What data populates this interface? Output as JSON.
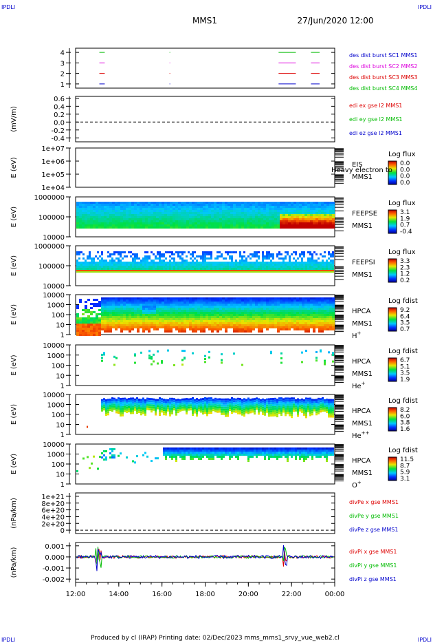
{
  "header": {
    "corner_left": "IPDLI",
    "corner_right": "IPDLI",
    "mission": "MMS1",
    "datetime": "27/Jun/2020 12:00"
  },
  "footer": {
    "text": "Produced by cl (IRAP)    Printing date: 02/Dec/2023    mms_mms1_srvy_vue_web2.cl",
    "corner_left": "IPDLI",
    "corner_right": "IPDLI"
  },
  "colors": {
    "red": "#dd0000",
    "magenta": "#dd00dd",
    "green": "#00bb00",
    "blue": "#0000cc"
  },
  "chart_data": [
    {
      "id": "burst",
      "type": "line",
      "y_ticks": [
        "1",
        "2",
        "3",
        "4"
      ],
      "ylim": [
        0.6,
        4.4
      ],
      "legend": [
        {
          "label": "des dist burst SC1 MMS1",
          "color": "blue"
        },
        {
          "label": "des dist burst SC2 MMS2",
          "color": "magenta"
        },
        {
          "label": "des dist burst SC3 MMS3",
          "color": "red"
        },
        {
          "label": "des dist burst SC4 MMS4",
          "color": "green"
        }
      ],
      "intervals_hours": [
        [
          13.1,
          13.35
        ],
        [
          16.35,
          16.38
        ],
        [
          21.4,
          22.2
        ],
        [
          22.9,
          23.3
        ]
      ]
    },
    {
      "id": "edi",
      "type": "line",
      "ylabel": "(mV/m)",
      "y_ticks": [
        "0.6",
        "0.4",
        "0.2",
        "0.0",
        "-0.2",
        "-0.4"
      ],
      "ylim": [
        -0.5,
        0.65
      ],
      "legend": [
        {
          "label": "edi ex gse l2 MMS1",
          "color": "red"
        },
        {
          "label": "edi ey gse l2 MMS1",
          "color": "green"
        },
        {
          "label": "edi ez gse l2 MMS1",
          "color": "blue"
        }
      ],
      "dashed_zero": true
    },
    {
      "id": "eis",
      "type": "heatmap",
      "ylabel": "E (eV)",
      "y_ticks": [
        "1e+07",
        "1e+06",
        "1e+05",
        "1e+04"
      ],
      "log": true,
      "label_lines": [
        "EIS",
        "MMS1"
      ],
      "overlay": "Heavy electron to",
      "colorbar_title": "Log flux",
      "colorbar_ticks": [
        "0.0",
        "0.0",
        "0.0",
        "0.0"
      ]
    },
    {
      "id": "feepse",
      "type": "heatmap",
      "ylabel": "E (eV)",
      "y_ticks": [
        "1000000",
        "100000",
        "10000"
      ],
      "log": true,
      "label_lines": [
        "FEEPSE",
        "MMS1"
      ],
      "colorbar_title": "Log flux",
      "colorbar_ticks": [
        "3.1",
        "1.9",
        "0.7",
        "-0.4"
      ]
    },
    {
      "id": "feepsi",
      "type": "heatmap",
      "ylabel": "E (eV)",
      "y_ticks": [
        "1000000",
        "100000",
        "10000"
      ],
      "log": true,
      "label_lines": [
        "FEEPSI",
        "MMS1"
      ],
      "colorbar_title": "Log flux",
      "colorbar_ticks": [
        "3.3",
        "2.3",
        "1.2",
        "0.2"
      ]
    },
    {
      "id": "hpca_h",
      "type": "heatmap",
      "ylabel": "E (eV)",
      "y_ticks": [
        "10000",
        "1000",
        "100",
        "10",
        "1"
      ],
      "log": true,
      "label_lines": [
        "HPCA",
        "MMS1",
        "H"
      ],
      "ion_charge": "+",
      "colorbar_title": "Log fdist",
      "colorbar_ticks": [
        "9.2",
        "6.4",
        "3.5",
        "0.7"
      ]
    },
    {
      "id": "hpca_he",
      "type": "heatmap",
      "ylabel": "E (eV)",
      "y_ticks": [
        "10000",
        "1000",
        "100",
        "10",
        "1"
      ],
      "log": true,
      "label_lines": [
        "HPCA",
        "MMS1",
        "He"
      ],
      "ion_charge": "+",
      "colorbar_title": "Log fdist",
      "colorbar_ticks": [
        "6.7",
        "5.1",
        "3.5",
        "1.9"
      ]
    },
    {
      "id": "hpca_hepp",
      "type": "heatmap",
      "ylabel": "E (eV)",
      "y_ticks": [
        "10000",
        "1000",
        "100",
        "10",
        "1"
      ],
      "log": true,
      "label_lines": [
        "HPCA",
        "MMS1",
        "He"
      ],
      "ion_charge": "++",
      "colorbar_title": "Log fdist",
      "colorbar_ticks": [
        "8.2",
        "6.0",
        "3.8",
        "1.6"
      ]
    },
    {
      "id": "hpca_o",
      "type": "heatmap",
      "ylabel": "E (eV)",
      "y_ticks": [
        "10000",
        "1000",
        "100",
        "10",
        "1"
      ],
      "log": true,
      "label_lines": [
        "HPCA",
        "MMS1",
        "O"
      ],
      "ion_charge": "+",
      "colorbar_title": "Log fdist",
      "colorbar_ticks": [
        "11.5",
        "8.7",
        "5.9",
        "3.1"
      ]
    },
    {
      "id": "divpe",
      "type": "line",
      "ylabel": "(nPa/km)",
      "y_ticks": [
        "1e+21",
        "8e+20",
        "6e+20",
        "4e+20",
        "2e+20",
        "0"
      ],
      "ylim": [
        -1e+20,
        1.1e+21
      ],
      "legend": [
        {
          "label": "divPe x gse MMS1",
          "color": "red"
        },
        {
          "label": "divPe y gse MMS1",
          "color": "green"
        },
        {
          "label": "divPe z gse MMS1",
          "color": "blue"
        }
      ],
      "dashed_zero": true
    },
    {
      "id": "divpi",
      "type": "line",
      "ylabel": "(nPa/km)",
      "y_ticks": [
        "0.001",
        "0.000",
        "-0.001",
        "-0.002"
      ],
      "ylim": [
        -0.0023,
        0.0013
      ],
      "legend": [
        {
          "label": "divPi x gse MMS1",
          "color": "red"
        },
        {
          "label": "divPi y gse MMS1",
          "color": "green"
        },
        {
          "label": "divPi z gse MMS1",
          "color": "blue"
        }
      ]
    }
  ],
  "time_axis": {
    "start_hour": 12,
    "end_hour": 24,
    "tick_labels": [
      "12:00",
      "14:00",
      "16:00",
      "18:00",
      "20:00",
      "22:00",
      "00:00"
    ]
  }
}
